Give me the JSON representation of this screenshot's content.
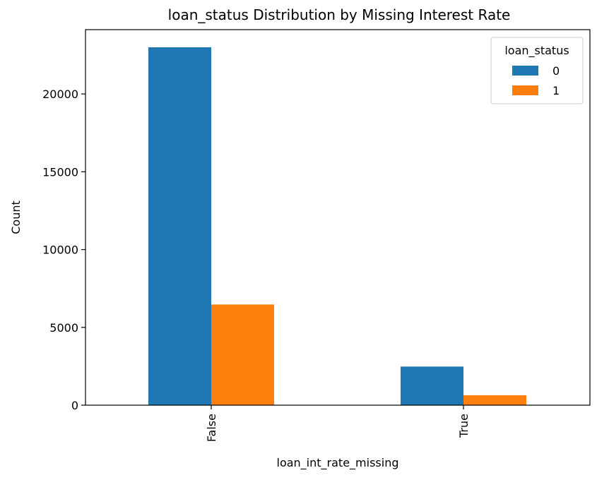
{
  "chart_data": {
    "type": "bar",
    "title": "loan_status Distribution by Missing Interest Rate",
    "xlabel": "loan_int_rate_missing",
    "ylabel": "Count",
    "categories": [
      "False",
      "True"
    ],
    "series": [
      {
        "name": "0",
        "color": "#1f77b4",
        "values": [
          23000,
          2480
        ]
      },
      {
        "name": "1",
        "color": "#ff7f0e",
        "values": [
          6470,
          640
        ]
      }
    ],
    "ylim": [
      0,
      24000
    ],
    "yticks": [
      0,
      5000,
      10000,
      15000,
      20000
    ],
    "legend": {
      "title": "loan_status",
      "position": "top-right"
    },
    "grid": false
  }
}
